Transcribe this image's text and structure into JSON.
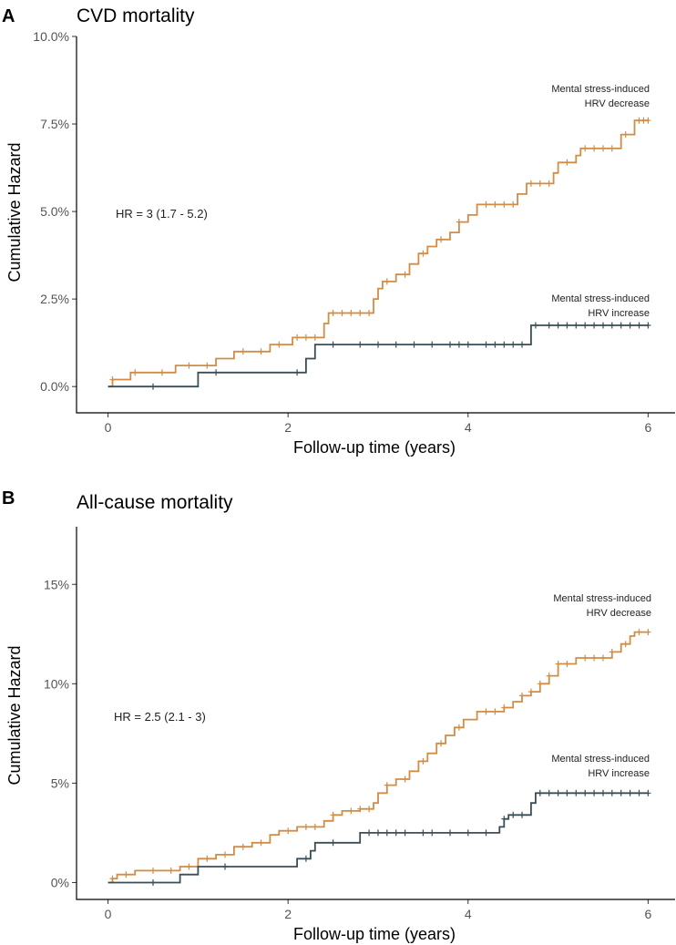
{
  "chart_data": [
    {
      "type": "line",
      "panel_label": "A",
      "title": "CVD mortality",
      "xlabel": "Follow-up time (years)",
      "ylabel": "Cumulative Hazard",
      "xlim": [
        -0.35,
        6.3
      ],
      "ylim": [
        -0.0075,
        0.1
      ],
      "xticks": [
        0,
        2,
        4,
        6
      ],
      "xtick_labels": [
        "0",
        "2",
        "4",
        "6"
      ],
      "yticks": [
        0,
        0.025,
        0.05,
        0.075,
        0.1
      ],
      "ytick_labels": [
        "0.0%",
        "2.5%",
        "5.0%",
        "7.5%",
        "10.0%"
      ],
      "annotations": {
        "hr": "HR = 3 (1.7 - 5.2)",
        "decrease": [
          "Mental stress-induced",
          "HRV decrease"
        ],
        "increase": [
          "Mental stress-induced",
          "HRV increase"
        ]
      },
      "series": [
        {
          "name": "Mental stress-induced HRV decrease",
          "color": "#d18c45",
          "steps": [
            [
              0,
              0
            ],
            [
              0.05,
              0.002
            ],
            [
              0.25,
              0.004
            ],
            [
              0.75,
              0.006
            ],
            [
              1.2,
              0.008
            ],
            [
              1.4,
              0.01
            ],
            [
              1.8,
              0.012
            ],
            [
              2.05,
              0.014
            ],
            [
              2.4,
              0.018
            ],
            [
              2.45,
              0.021
            ],
            [
              2.95,
              0.025
            ],
            [
              3.0,
              0.028
            ],
            [
              3.05,
              0.03
            ],
            [
              3.2,
              0.032
            ],
            [
              3.35,
              0.035
            ],
            [
              3.45,
              0.038
            ],
            [
              3.55,
              0.04
            ],
            [
              3.65,
              0.042
            ],
            [
              3.8,
              0.044
            ],
            [
              3.9,
              0.047
            ],
            [
              4.0,
              0.049
            ],
            [
              4.1,
              0.052
            ],
            [
              4.55,
              0.055
            ],
            [
              4.65,
              0.058
            ],
            [
              4.95,
              0.061
            ],
            [
              5.0,
              0.064
            ],
            [
              5.2,
              0.066
            ],
            [
              5.25,
              0.068
            ],
            [
              5.7,
              0.072
            ],
            [
              5.85,
              0.076
            ],
            [
              6.0,
              0.076
            ]
          ],
          "censor": [
            0.05,
            0.3,
            0.6,
            0.9,
            1.1,
            1.5,
            1.7,
            1.9,
            2.1,
            2.2,
            2.3,
            2.5,
            2.6,
            2.7,
            2.8,
            2.9,
            3.1,
            3.3,
            3.5,
            3.7,
            3.9,
            4.2,
            4.3,
            4.4,
            4.5,
            4.7,
            4.8,
            4.9,
            5.1,
            5.3,
            5.4,
            5.5,
            5.6,
            5.75,
            5.9,
            5.95,
            6.0
          ]
        },
        {
          "name": "Mental stress-induced HRV increase",
          "color": "#3b4e57",
          "steps": [
            [
              0,
              0
            ],
            [
              1.0,
              0.004
            ],
            [
              2.2,
              0.008
            ],
            [
              2.3,
              0.012
            ],
            [
              4.7,
              0.0175
            ],
            [
              6.0,
              0.0175
            ]
          ],
          "censor": [
            0.5,
            1.2,
            2.1,
            2.5,
            2.8,
            3.0,
            3.2,
            3.4,
            3.6,
            3.8,
            3.9,
            4.0,
            4.2,
            4.3,
            4.4,
            4.5,
            4.6,
            4.75,
            4.9,
            5.0,
            5.1,
            5.2,
            5.3,
            5.4,
            5.5,
            5.6,
            5.7,
            5.8,
            5.9,
            6.0
          ]
        }
      ]
    },
    {
      "type": "line",
      "panel_label": "B",
      "title": "All-cause mortality",
      "xlabel": "Follow-up time (years)",
      "ylabel": "Cumulative Hazard",
      "xlim": [
        -0.35,
        6.3
      ],
      "ylim": [
        -0.0085,
        0.179
      ],
      "xticks": [
        0,
        2,
        4,
        6
      ],
      "xtick_labels": [
        "0",
        "2",
        "4",
        "6"
      ],
      "yticks": [
        0,
        0.05,
        0.1,
        0.15
      ],
      "ytick_labels": [
        "0%",
        "5%",
        "10%",
        "15%"
      ],
      "annotations": {
        "hr": "HR = 2.5 (2.1 - 3)",
        "decrease": [
          "Mental stress-induced",
          "HRV decrease"
        ],
        "increase": [
          "Mental stress-induced",
          "HRV increase"
        ]
      },
      "series": [
        {
          "name": "Mental stress-induced HRV decrease",
          "color": "#d18c45",
          "steps": [
            [
              0,
              0
            ],
            [
              0.05,
              0.002
            ],
            [
              0.1,
              0.004
            ],
            [
              0.3,
              0.006
            ],
            [
              0.8,
              0.008
            ],
            [
              1.0,
              0.012
            ],
            [
              1.2,
              0.014
            ],
            [
              1.4,
              0.018
            ],
            [
              1.6,
              0.02
            ],
            [
              1.8,
              0.024
            ],
            [
              1.9,
              0.026
            ],
            [
              2.1,
              0.028
            ],
            [
              2.4,
              0.031
            ],
            [
              2.5,
              0.034
            ],
            [
              2.6,
              0.036
            ],
            [
              2.8,
              0.037
            ],
            [
              2.95,
              0.04
            ],
            [
              3.0,
              0.045
            ],
            [
              3.1,
              0.049
            ],
            [
              3.2,
              0.052
            ],
            [
              3.35,
              0.056
            ],
            [
              3.45,
              0.061
            ],
            [
              3.55,
              0.065
            ],
            [
              3.65,
              0.07
            ],
            [
              3.75,
              0.074
            ],
            [
              3.85,
              0.078
            ],
            [
              3.95,
              0.082
            ],
            [
              4.1,
              0.086
            ],
            [
              4.4,
              0.088
            ],
            [
              4.5,
              0.091
            ],
            [
              4.6,
              0.094
            ],
            [
              4.7,
              0.096
            ],
            [
              4.8,
              0.1
            ],
            [
              4.9,
              0.104
            ],
            [
              5.0,
              0.11
            ],
            [
              5.2,
              0.113
            ],
            [
              5.6,
              0.116
            ],
            [
              5.7,
              0.12
            ],
            [
              5.8,
              0.124
            ],
            [
              5.85,
              0.126
            ],
            [
              6.0,
              0.126
            ]
          ],
          "censor": [
            0.05,
            0.2,
            0.5,
            0.7,
            0.9,
            1.1,
            1.3,
            1.5,
            1.7,
            2.0,
            2.2,
            2.3,
            2.5,
            2.7,
            2.8,
            2.9,
            3.1,
            3.3,
            3.5,
            3.7,
            3.9,
            4.2,
            4.3,
            4.4,
            4.6,
            4.7,
            4.8,
            4.9,
            5.0,
            5.1,
            5.3,
            5.4,
            5.5,
            5.6,
            5.75,
            5.9,
            6.0
          ]
        },
        {
          "name": "Mental stress-induced HRV increase",
          "color": "#3b4e57",
          "steps": [
            [
              0,
              0
            ],
            [
              0.8,
              0.004
            ],
            [
              1.0,
              0.008
            ],
            [
              2.1,
              0.012
            ],
            [
              2.25,
              0.016
            ],
            [
              2.3,
              0.02
            ],
            [
              2.8,
              0.025
            ],
            [
              4.35,
              0.028
            ],
            [
              4.4,
              0.032
            ],
            [
              4.45,
              0.034
            ],
            [
              4.7,
              0.04
            ],
            [
              4.75,
              0.045
            ],
            [
              6.0,
              0.045
            ]
          ],
          "censor": [
            0.5,
            1.3,
            2.2,
            2.5,
            2.9,
            3.0,
            3.1,
            3.2,
            3.3,
            3.5,
            3.6,
            3.8,
            4.0,
            4.2,
            4.4,
            4.5,
            4.6,
            4.8,
            4.9,
            5.0,
            5.1,
            5.2,
            5.3,
            5.4,
            5.5,
            5.6,
            5.7,
            5.8,
            5.9,
            6.0
          ]
        }
      ]
    }
  ]
}
